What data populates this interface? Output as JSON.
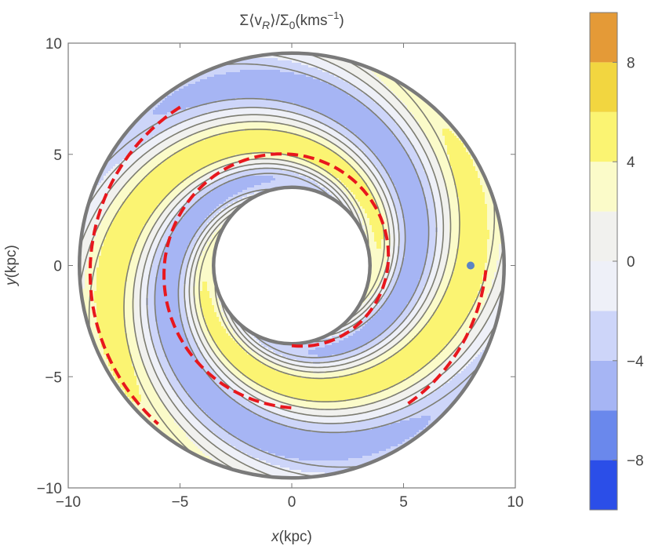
{
  "chart_data": {
    "type": "contour",
    "title": "Σ⟨v_R⟩/Σ₀(kms⁻¹)",
    "title_parts": {
      "main": "Σ⟨v",
      "sub_r": "R",
      "mid": "⟩/Σ",
      "sub_0": "0",
      "units": "(kms",
      "sup": "−1",
      "close": ")"
    },
    "xlabel": {
      "var": "x",
      "unit": "(kpc)"
    },
    "ylabel": {
      "var": "y",
      "unit": "(kpc)"
    },
    "xlim": [
      -10,
      10
    ],
    "ylim": [
      -10,
      10
    ],
    "xticks": [
      -10,
      -5,
      0,
      5,
      10
    ],
    "yticks": [
      -10,
      -5,
      0,
      5,
      10
    ],
    "xtick_labels": [
      "−10",
      "−5",
      "0",
      "5",
      "10"
    ],
    "ytick_labels": [
      "−10",
      "−5",
      "0",
      "5",
      "10"
    ],
    "disk": {
      "inner_radius": 3.5,
      "outer_radius": 9.5
    },
    "model": {
      "arms": 2,
      "pitch_angle_deg": 14,
      "amplitude": 5.5
    },
    "contour_levels": [
      -10,
      -8,
      -6,
      -4,
      -2,
      0,
      2,
      4,
      6,
      8,
      10
    ],
    "colors": [
      "#2b4ee8",
      "#6a88ec",
      "#a6b5f4",
      "#cdd5f9",
      "#eef0f8",
      "#f1f1ee",
      "#fbfbc9",
      "#fbf472",
      "#f2d640",
      "#e49a37",
      "#d3232b"
    ],
    "dashed_spiral_color": "#e8171d",
    "dashed_spirals": [
      {
        "name": "inner-arm",
        "theta_range_deg": [
          -90,
          270
        ],
        "r0": 3.6,
        "r_at_end": 6.4
      },
      {
        "name": "outer-arm-upper",
        "theta_range_deg": [
          125,
          230
        ],
        "r0": 8.7,
        "r_growth": 0.6
      },
      {
        "name": "outer-arm-lower",
        "theta_range_deg": [
          -50,
          0
        ],
        "r0": 8.1,
        "r_growth": 0.6
      }
    ],
    "marker": {
      "x": 8.0,
      "y": 0.0,
      "color": "#5b84c4"
    },
    "colorbar": {
      "range": [
        -10,
        10
      ],
      "tick_values": [
        8,
        4,
        0,
        -4,
        -8
      ],
      "tick_labels": [
        "8",
        "4",
        "0",
        "−4",
        "−8"
      ]
    },
    "grid": false,
    "legend": "colorbar-right"
  }
}
